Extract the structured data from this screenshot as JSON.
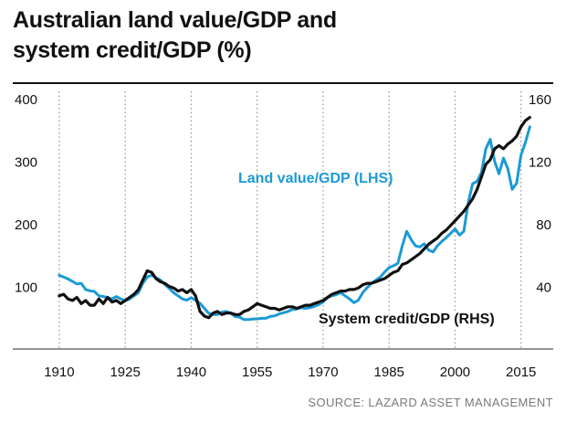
{
  "title_lines": [
    "Australian land value/GDP and",
    "system credit/GDP (%)"
  ],
  "source": "SOURCE: LAZARD ASSET MANAGEMENT",
  "colors": {
    "land": "#1b9ad6",
    "credit": "#111111",
    "grid": "#9a9a9a",
    "axis": "#555555"
  },
  "chart_data": {
    "type": "line",
    "title": "Australian land value/GDP and system credit/GDP (%)",
    "xlim": [
      1904,
      2019
    ],
    "xticks": [
      1910,
      1925,
      1940,
      1955,
      1970,
      1985,
      2000,
      2015
    ],
    "y_left": {
      "lim": [
        0,
        400
      ],
      "ticks": [
        100,
        200,
        300,
        400
      ]
    },
    "y_right": {
      "lim": [
        0,
        160
      ],
      "ticks": [
        40,
        80,
        120,
        160
      ]
    },
    "grid": "vertical dotted",
    "series": [
      {
        "name": "Land value/GDP (LHS)",
        "axis": "left",
        "x": [
          1910,
          1911,
          1912,
          1913,
          1914,
          1915,
          1916,
          1917,
          1918,
          1919,
          1920,
          1921,
          1922,
          1923,
          1924,
          1925,
          1926,
          1927,
          1928,
          1929,
          1930,
          1931,
          1932,
          1933,
          1934,
          1935,
          1936,
          1937,
          1938,
          1939,
          1940,
          1941,
          1942,
          1943,
          1944,
          1945,
          1946,
          1947,
          1948,
          1949,
          1950,
          1951,
          1952,
          1953,
          1954,
          1955,
          1956,
          1957,
          1958,
          1959,
          1960,
          1961,
          1962,
          1963,
          1964,
          1965,
          1966,
          1967,
          1968,
          1969,
          1970,
          1971,
          1972,
          1973,
          1974,
          1975,
          1976,
          1977,
          1978,
          1979,
          1980,
          1981,
          1982,
          1983,
          1984,
          1985,
          1986,
          1987,
          1988,
          1989,
          1990,
          1991,
          1992,
          1993,
          1994,
          1995,
          1996,
          1997,
          1998,
          1999,
          2000,
          2001,
          2002,
          2003,
          2004,
          2005,
          2006,
          2007,
          2008,
          2009,
          2010,
          2011,
          2012,
          2013,
          2014,
          2015,
          2016,
          2017
        ],
        "values": [
          118,
          115,
          112,
          108,
          104,
          105,
          95,
          93,
          92,
          85,
          84,
          82,
          80,
          84,
          80,
          77,
          80,
          85,
          90,
          105,
          115,
          118,
          114,
          110,
          103,
          97,
          90,
          85,
          80,
          78,
          82,
          78,
          73,
          65,
          57,
          55,
          55,
          59,
          60,
          57,
          52,
          51,
          47,
          47,
          48,
          48,
          49,
          49,
          52,
          53,
          56,
          58,
          60,
          63,
          64,
          66,
          65,
          66,
          68,
          71,
          75,
          82,
          85,
          87,
          90,
          85,
          80,
          74,
          78,
          90,
          98,
          105,
          110,
          115,
          123,
          130,
          133,
          137,
          165,
          188,
          175,
          165,
          163,
          168,
          158,
          155,
          165,
          172,
          178,
          185,
          192,
          182,
          188,
          234,
          264,
          268,
          282,
          320,
          335,
          300,
          280,
          305,
          288,
          255,
          265,
          310,
          330,
          355
        ]
      },
      {
        "name": "System credit/GDP (RHS)",
        "axis": "right",
        "x": [
          1910,
          1911,
          1912,
          1913,
          1914,
          1915,
          1916,
          1917,
          1918,
          1919,
          1920,
          1921,
          1922,
          1923,
          1924,
          1925,
          1926,
          1927,
          1928,
          1929,
          1930,
          1931,
          1932,
          1933,
          1934,
          1935,
          1936,
          1937,
          1938,
          1939,
          1940,
          1941,
          1942,
          1943,
          1944,
          1945,
          1946,
          1947,
          1948,
          1949,
          1950,
          1951,
          1952,
          1953,
          1954,
          1955,
          1956,
          1957,
          1958,
          1959,
          1960,
          1961,
          1962,
          1963,
          1964,
          1965,
          1966,
          1967,
          1968,
          1969,
          1970,
          1971,
          1972,
          1973,
          1974,
          1975,
          1976,
          1977,
          1978,
          1979,
          1980,
          1981,
          1982,
          1983,
          1984,
          1985,
          1986,
          1987,
          1988,
          1989,
          1990,
          1991,
          1992,
          1993,
          1994,
          1995,
          1996,
          1997,
          1998,
          1999,
          2000,
          2001,
          2002,
          2003,
          2004,
          2005,
          2006,
          2007,
          2008,
          2009,
          2010,
          2011,
          2012,
          2013,
          2014,
          2015,
          2016,
          2017
        ],
        "values": [
          34,
          35,
          32,
          31,
          33,
          29,
          31,
          28,
          28,
          32,
          29,
          33,
          30,
          31,
          29,
          31,
          33,
          35,
          38,
          44,
          50,
          49,
          45,
          43,
          42,
          40,
          39,
          37,
          38,
          36,
          38,
          34,
          24,
          21,
          20,
          23,
          24,
          22,
          23,
          23,
          22,
          22,
          24,
          25,
          27,
          29,
          28,
          27,
          26,
          26,
          25,
          26,
          27,
          27,
          26,
          27,
          28,
          28,
          29,
          30,
          31,
          33,
          35,
          36,
          37,
          37,
          38,
          38,
          39,
          41,
          42,
          42,
          43,
          44,
          45,
          47,
          49,
          50,
          54,
          55,
          57,
          59,
          61,
          64,
          67,
          69,
          71,
          74,
          76,
          79,
          82,
          85,
          88,
          92,
          96,
          102,
          110,
          118,
          121,
          128,
          130,
          128,
          131,
          133,
          136,
          142,
          146,
          148
        ]
      }
    ],
    "annotations": [
      "Land value/GDP (LHS)",
      "System credit/GDP (RHS)"
    ]
  }
}
